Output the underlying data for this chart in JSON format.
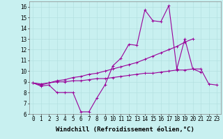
{
  "xlabel": "Windchill (Refroidissement éolien,°C)",
  "background_color": "#c8f0f0",
  "line_color": "#990099",
  "x_values": [
    0,
    1,
    2,
    3,
    4,
    5,
    6,
    7,
    8,
    9,
    10,
    11,
    12,
    13,
    14,
    15,
    16,
    17,
    18,
    19,
    20,
    21,
    22,
    23
  ],
  "line1": [
    8.9,
    8.6,
    8.7,
    8.0,
    8.0,
    8.0,
    6.2,
    6.2,
    7.5,
    8.7,
    10.5,
    11.2,
    12.5,
    12.4,
    15.7,
    14.7,
    14.6,
    16.1,
    10.2,
    13.0,
    10.2,
    9.9,
    null,
    null
  ],
  "line2": [
    8.9,
    8.7,
    8.9,
    9.1,
    9.2,
    9.4,
    9.5,
    9.7,
    9.8,
    10.0,
    10.2,
    10.4,
    10.6,
    10.8,
    11.1,
    11.4,
    11.7,
    12.0,
    12.3,
    12.7,
    13.0,
    null,
    null,
    null
  ],
  "line3": [
    8.9,
    8.8,
    8.9,
    9.0,
    9.0,
    9.1,
    9.1,
    9.2,
    9.3,
    9.3,
    9.4,
    9.5,
    9.6,
    9.7,
    9.8,
    9.8,
    9.9,
    10.0,
    10.1,
    10.1,
    10.2,
    10.2,
    8.8,
    8.7
  ],
  "ylim": [
    6,
    16.5
  ],
  "xlim": [
    -0.5,
    23.5
  ],
  "yticks": [
    6,
    7,
    8,
    9,
    10,
    11,
    12,
    13,
    14,
    15,
    16
  ],
  "xticks": [
    0,
    1,
    2,
    3,
    4,
    5,
    6,
    7,
    8,
    9,
    10,
    11,
    12,
    13,
    14,
    15,
    16,
    17,
    18,
    19,
    20,
    21,
    22,
    23
  ],
  "marker": "+",
  "marker_size": 3,
  "line_width": 0.8,
  "tick_fontsize": 5.5,
  "xlabel_fontsize": 6.5,
  "grid_color": "#b0dede",
  "grid_linewidth": 0.4
}
